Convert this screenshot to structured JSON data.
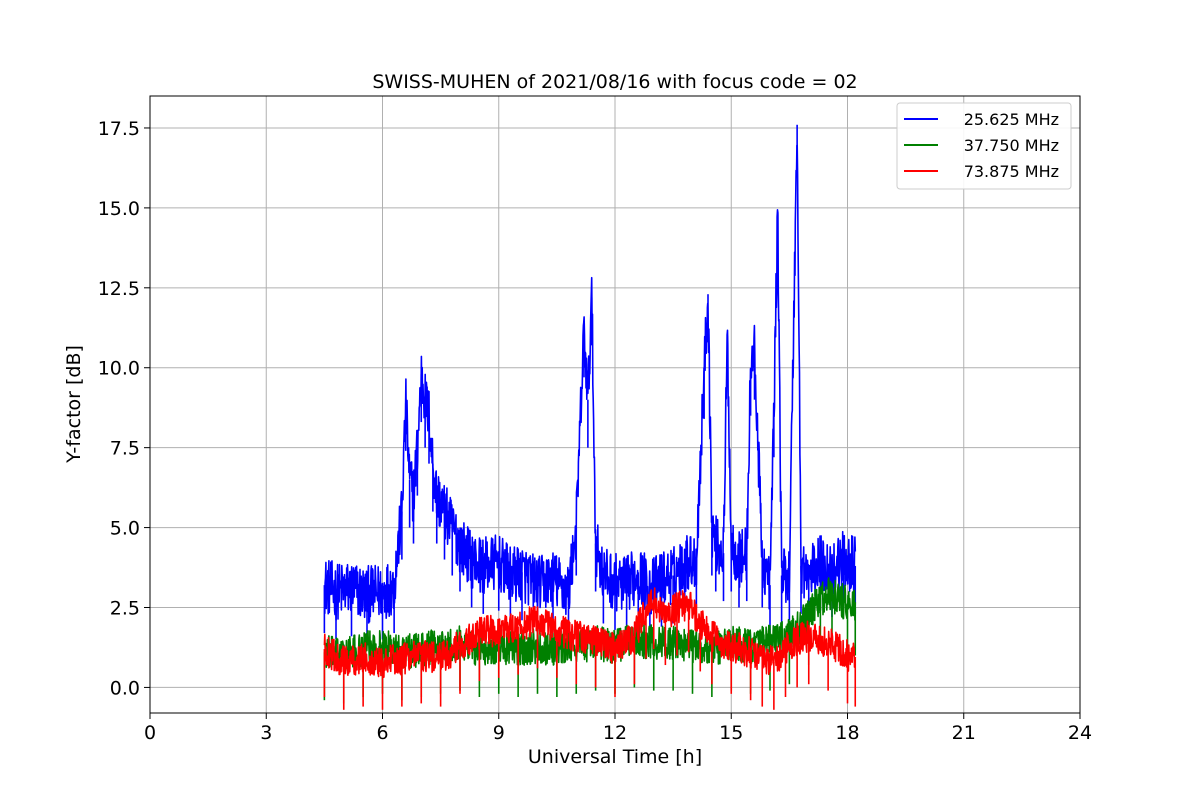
{
  "chart_data": {
    "type": "line",
    "title": "SWISS-MUHEN of 2021/08/16 with focus code = 02",
    "xlabel": "Universal Time [h]",
    "ylabel": "Y-factor [dB]",
    "xlim": [
      0,
      24
    ],
    "ylim": [
      -0.8,
      18.5
    ],
    "xticks": [
      0,
      3,
      6,
      9,
      12,
      15,
      18,
      21,
      24
    ],
    "xtick_labels": [
      "0",
      "3",
      "6",
      "9",
      "12",
      "15",
      "18",
      "21",
      "24"
    ],
    "yticks": [
      0,
      2.5,
      5,
      7.5,
      10,
      12.5,
      15,
      17.5
    ],
    "ytick_labels": [
      "0.0",
      "2.5",
      "5.0",
      "7.5",
      "10.0",
      "12.5",
      "15.0",
      "17.5"
    ],
    "grid": true,
    "legend_position": "top-right",
    "series": [
      {
        "name": "25.625 MHz",
        "color": "#0000ff",
        "x": [
          4.5,
          4.8,
          5.2,
          5.6,
          6.0,
          6.3,
          6.5,
          6.6,
          6.7,
          6.8,
          6.9,
          7.0,
          7.1,
          7.2,
          7.3,
          7.4,
          7.6,
          7.8,
          8.0,
          8.3,
          8.6,
          9.0,
          9.3,
          9.6,
          10.0,
          10.4,
          10.8,
          11.0,
          11.2,
          11.3,
          11.4,
          11.5,
          11.7,
          12.0,
          12.3,
          12.6,
          12.9,
          13.2,
          13.5,
          13.8,
          14.1,
          14.3,
          14.4,
          14.5,
          14.6,
          14.8,
          14.9,
          15.0,
          15.2,
          15.4,
          15.5,
          15.6,
          15.8,
          16.0,
          16.1,
          16.2,
          16.3,
          16.5,
          16.7,
          16.8,
          17.0,
          17.3,
          17.6,
          17.9,
          18.2
        ],
        "values": [
          3.2,
          3.0,
          3.1,
          2.9,
          3.0,
          3.2,
          5.5,
          8.9,
          6.5,
          6.0,
          7.5,
          9.8,
          9.0,
          8.5,
          7.0,
          6.0,
          5.5,
          5.0,
          4.5,
          4.0,
          3.8,
          3.9,
          3.5,
          3.6,
          3.2,
          3.4,
          3.0,
          5.0,
          11.2,
          9.0,
          12.2,
          4.5,
          3.5,
          3.3,
          3.2,
          3.6,
          3.1,
          3.4,
          3.5,
          3.9,
          4.0,
          9.9,
          12.3,
          5.0,
          4.5,
          4.2,
          11.0,
          4.5,
          4.0,
          4.2,
          10.0,
          10.5,
          4.0,
          3.2,
          8.7,
          14.8,
          3.5,
          3.6,
          17.6,
          3.8,
          3.5,
          3.9,
          3.7,
          4.0,
          3.8
        ]
      },
      {
        "name": "37.750 MHz",
        "color": "#008000",
        "x": [
          4.5,
          5.0,
          5.5,
          6.0,
          6.5,
          7.0,
          7.5,
          8.0,
          8.5,
          9.0,
          9.5,
          10.0,
          10.5,
          11.0,
          11.5,
          12.0,
          12.5,
          13.0,
          13.5,
          14.0,
          14.5,
          15.0,
          15.5,
          16.0,
          16.5,
          17.0,
          17.3,
          17.6,
          18.0,
          18.2
        ],
        "values": [
          1.1,
          1.0,
          1.2,
          1.3,
          1.1,
          1.2,
          1.3,
          1.4,
          1.2,
          1.3,
          1.2,
          1.3,
          1.2,
          1.3,
          1.4,
          1.3,
          1.5,
          1.4,
          1.4,
          1.3,
          1.2,
          1.4,
          1.3,
          1.4,
          1.6,
          2.2,
          2.8,
          2.9,
          2.6,
          2.5
        ]
      },
      {
        "name": "73.875 MHz",
        "color": "#ff0000",
        "x": [
          4.5,
          5.0,
          5.5,
          6.0,
          6.5,
          7.0,
          7.5,
          8.0,
          8.5,
          9.0,
          9.5,
          10.0,
          10.5,
          11.0,
          11.5,
          12.0,
          12.5,
          12.8,
          13.0,
          13.3,
          13.6,
          13.9,
          14.2,
          14.5,
          15.0,
          15.5,
          15.8,
          16.1,
          16.4,
          16.7,
          17.0,
          17.5,
          18.0,
          18.2
        ],
        "values": [
          1.2,
          0.8,
          0.9,
          0.8,
          0.9,
          1.0,
          0.9,
          1.3,
          1.7,
          1.8,
          1.9,
          2.1,
          1.8,
          1.6,
          1.5,
          1.2,
          1.6,
          2.4,
          2.7,
          2.2,
          2.5,
          2.6,
          2.0,
          1.6,
          1.3,
          1.1,
          0.9,
          0.8,
          1.2,
          1.5,
          1.6,
          1.4,
          1.0,
          0.9
        ]
      }
    ]
  }
}
